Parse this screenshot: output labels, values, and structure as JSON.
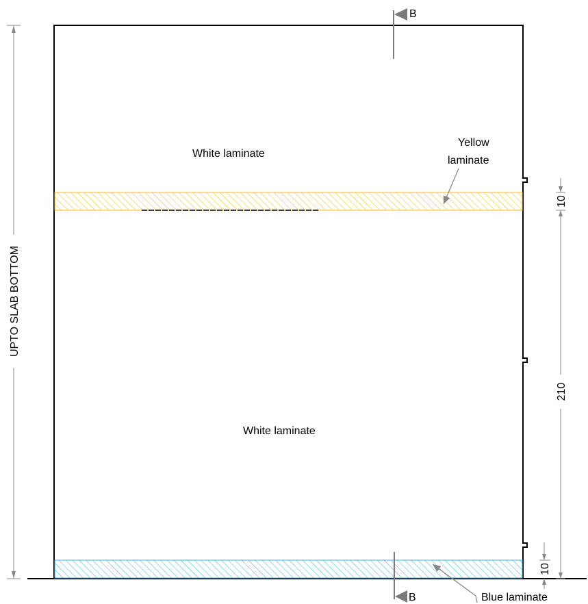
{
  "labels": {
    "upper_panel": "White laminate",
    "lower_panel": "White laminate",
    "yellow_line1": "Yellow",
    "yellow_line2": "laminate",
    "blue": "Blue laminate",
    "section_top": "B",
    "section_bottom": "B",
    "overall_height": "UPTO SLAB BOTTOM"
  },
  "dimensions": {
    "yellow_band": "10",
    "door_height": "210",
    "blue_band": "10"
  },
  "colors": {
    "outline": "#000000",
    "yellow_hatch": "#f5b81c",
    "blue_hatch": "#33b5e5",
    "dim_line": "#888888",
    "section_marker": "#7a7a7a"
  }
}
